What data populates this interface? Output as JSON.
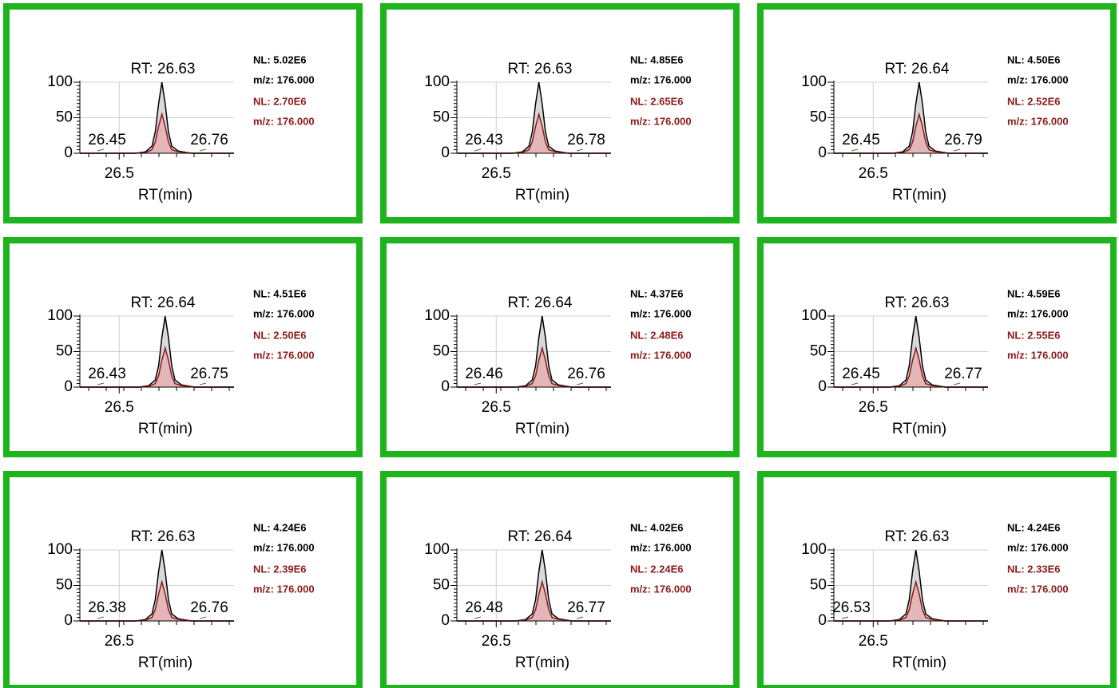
{
  "chart_data": [
    {
      "type": "line",
      "title": "RT: 26.63",
      "xlabel": "RT(min)",
      "annotations": [
        "26.45",
        "26.76"
      ],
      "xlim": [
        26.38,
        26.85
      ],
      "ylim": [
        0,
        100
      ],
      "xticks": [
        26.5
      ],
      "yticks": [
        0,
        50,
        100
      ],
      "grid": true,
      "x": [
        26.38,
        26.55,
        26.58,
        26.6,
        26.61,
        26.62,
        26.63,
        26.64,
        26.65,
        26.66,
        26.68,
        26.72,
        26.85
      ],
      "series": [
        {
          "name": "NL: 5.02E6",
          "detail": "m/z: 176.000",
          "color": "#000000",
          "fill": "#d9d9d9",
          "values": [
            0,
            0,
            2,
            10,
            30,
            70,
            100,
            70,
            30,
            10,
            3,
            0,
            0
          ]
        },
        {
          "name": "NL: 2.70E6",
          "detail": "m/z: 176.000",
          "color": "#8b1a1a",
          "fill": "#e3b3b3",
          "values": [
            0,
            0,
            1,
            5,
            16,
            38,
            55,
            38,
            16,
            5,
            2,
            0,
            0
          ]
        }
      ]
    },
    {
      "type": "line",
      "title": "RT: 26.63",
      "xlabel": "RT(min)",
      "annotations": [
        "26.43",
        "26.78"
      ],
      "xlim": [
        26.38,
        26.85
      ],
      "ylim": [
        0,
        100
      ],
      "xticks": [
        26.5
      ],
      "yticks": [
        0,
        50,
        100
      ],
      "grid": true,
      "x": [
        26.38,
        26.55,
        26.58,
        26.6,
        26.61,
        26.62,
        26.63,
        26.64,
        26.65,
        26.66,
        26.68,
        26.72,
        26.85
      ],
      "series": [
        {
          "name": "NL: 4.85E6",
          "detail": "m/z: 176.000",
          "color": "#000000",
          "fill": "#d9d9d9",
          "values": [
            0,
            0,
            2,
            10,
            30,
            70,
            100,
            70,
            30,
            10,
            3,
            0,
            0
          ]
        },
        {
          "name": "NL: 2.65E6",
          "detail": "m/z: 176.000",
          "color": "#8b1a1a",
          "fill": "#e3b3b3",
          "values": [
            0,
            0,
            1,
            5,
            16,
            38,
            55,
            38,
            16,
            5,
            2,
            0,
            0
          ]
        }
      ]
    },
    {
      "type": "line",
      "title": "RT: 26.64",
      "xlabel": "RT(min)",
      "annotations": [
        "26.45",
        "26.79"
      ],
      "xlim": [
        26.38,
        26.85
      ],
      "ylim": [
        0,
        100
      ],
      "xticks": [
        26.5
      ],
      "yticks": [
        0,
        50,
        100
      ],
      "grid": true,
      "x": [
        26.38,
        26.56,
        26.59,
        26.61,
        26.62,
        26.63,
        26.64,
        26.65,
        26.66,
        26.67,
        26.69,
        26.73,
        26.85
      ],
      "series": [
        {
          "name": "NL: 4.50E6",
          "detail": "m/z: 176.000",
          "color": "#000000",
          "fill": "#d9d9d9",
          "values": [
            0,
            0,
            2,
            10,
            30,
            70,
            100,
            70,
            30,
            10,
            3,
            0,
            0
          ]
        },
        {
          "name": "NL: 2.52E6",
          "detail": "m/z: 176.000",
          "color": "#8b1a1a",
          "fill": "#e3b3b3",
          "values": [
            0,
            0,
            1,
            5,
            16,
            38,
            55,
            38,
            16,
            5,
            2,
            0,
            0
          ]
        }
      ]
    },
    {
      "type": "line",
      "title": "RT: 26.64",
      "xlabel": "RT(min)",
      "annotations": [
        "26.43",
        "26.75"
      ],
      "xlim": [
        26.38,
        26.85
      ],
      "ylim": [
        0,
        100
      ],
      "xticks": [
        26.5
      ],
      "yticks": [
        0,
        50,
        100
      ],
      "grid": true,
      "x": [
        26.38,
        26.56,
        26.59,
        26.61,
        26.62,
        26.63,
        26.64,
        26.65,
        26.66,
        26.67,
        26.69,
        26.73,
        26.85
      ],
      "series": [
        {
          "name": "NL: 4.51E6",
          "detail": "m/z: 176.000",
          "color": "#000000",
          "fill": "#d9d9d9",
          "values": [
            0,
            0,
            2,
            10,
            30,
            70,
            100,
            70,
            30,
            10,
            3,
            0,
            0
          ]
        },
        {
          "name": "NL: 2.50E6",
          "detail": "m/z: 176.000",
          "color": "#8b1a1a",
          "fill": "#e3b3b3",
          "values": [
            0,
            0,
            1,
            5,
            16,
            38,
            55,
            38,
            16,
            5,
            2,
            0,
            0
          ]
        }
      ]
    },
    {
      "type": "line",
      "title": "RT: 26.64",
      "xlabel": "RT(min)",
      "annotations": [
        "26.46",
        "26.76"
      ],
      "xlim": [
        26.38,
        26.85
      ],
      "ylim": [
        0,
        100
      ],
      "xticks": [
        26.5
      ],
      "yticks": [
        0,
        50,
        100
      ],
      "grid": true,
      "x": [
        26.38,
        26.56,
        26.59,
        26.61,
        26.62,
        26.63,
        26.64,
        26.65,
        26.66,
        26.67,
        26.69,
        26.73,
        26.85
      ],
      "series": [
        {
          "name": "NL: 4.37E6",
          "detail": "m/z: 176.000",
          "color": "#000000",
          "fill": "#d9d9d9",
          "values": [
            0,
            0,
            2,
            10,
            30,
            70,
            100,
            70,
            30,
            10,
            3,
            0,
            0
          ]
        },
        {
          "name": "NL: 2.48E6",
          "detail": "m/z: 176.000",
          "color": "#8b1a1a",
          "fill": "#e3b3b3",
          "values": [
            0,
            0,
            1,
            5,
            16,
            38,
            55,
            38,
            16,
            5,
            2,
            0,
            0
          ]
        }
      ]
    },
    {
      "type": "line",
      "title": "RT: 26.63",
      "xlabel": "RT(min)",
      "annotations": [
        "26.45",
        "26.77"
      ],
      "xlim": [
        26.38,
        26.85
      ],
      "ylim": [
        0,
        100
      ],
      "xticks": [
        26.5
      ],
      "yticks": [
        0,
        50,
        100
      ],
      "grid": true,
      "x": [
        26.38,
        26.55,
        26.58,
        26.6,
        26.61,
        26.62,
        26.63,
        26.64,
        26.65,
        26.66,
        26.68,
        26.72,
        26.85
      ],
      "series": [
        {
          "name": "NL: 4.59E6",
          "detail": "m/z: 176.000",
          "color": "#000000",
          "fill": "#d9d9d9",
          "values": [
            0,
            0,
            2,
            10,
            30,
            70,
            100,
            70,
            30,
            10,
            3,
            0,
            0
          ]
        },
        {
          "name": "NL: 2.55E6",
          "detail": "m/z: 176.000",
          "color": "#8b1a1a",
          "fill": "#e3b3b3",
          "values": [
            0,
            0,
            1,
            5,
            16,
            38,
            55,
            38,
            16,
            5,
            2,
            0,
            0
          ]
        }
      ]
    },
    {
      "type": "line",
      "title": "RT: 26.63",
      "xlabel": "RT(min)",
      "annotations": [
        "26.38",
        "26.76"
      ],
      "xlim": [
        26.38,
        26.85
      ],
      "ylim": [
        0,
        100
      ],
      "xticks": [
        26.5
      ],
      "yticks": [
        0,
        50,
        100
      ],
      "grid": true,
      "x": [
        26.38,
        26.55,
        26.58,
        26.6,
        26.61,
        26.62,
        26.63,
        26.64,
        26.65,
        26.66,
        26.68,
        26.72,
        26.85
      ],
      "series": [
        {
          "name": "NL: 4.24E6",
          "detail": "m/z: 176.000",
          "color": "#000000",
          "fill": "#d9d9d9",
          "values": [
            0,
            0,
            2,
            10,
            30,
            70,
            100,
            70,
            30,
            10,
            3,
            0,
            0
          ]
        },
        {
          "name": "NL: 2.39E6",
          "detail": "m/z: 176.000",
          "color": "#8b1a1a",
          "fill": "#e3b3b3",
          "values": [
            0,
            0,
            1,
            5,
            16,
            38,
            55,
            38,
            16,
            5,
            2,
            0,
            0
          ]
        }
      ]
    },
    {
      "type": "line",
      "title": "RT: 26.64",
      "xlabel": "RT(min)",
      "annotations": [
        "26.48",
        "26.77"
      ],
      "xlim": [
        26.38,
        26.85
      ],
      "ylim": [
        0,
        100
      ],
      "xticks": [
        26.5
      ],
      "yticks": [
        0,
        50,
        100
      ],
      "grid": true,
      "x": [
        26.38,
        26.56,
        26.59,
        26.61,
        26.62,
        26.63,
        26.64,
        26.65,
        26.66,
        26.67,
        26.69,
        26.73,
        26.85
      ],
      "series": [
        {
          "name": "NL: 4.02E6",
          "detail": "m/z: 176.000",
          "color": "#000000",
          "fill": "#d9d9d9",
          "values": [
            0,
            0,
            2,
            10,
            30,
            70,
            100,
            70,
            30,
            10,
            3,
            0,
            0
          ]
        },
        {
          "name": "NL: 2.24E6",
          "detail": "m/z: 176.000",
          "color": "#8b1a1a",
          "fill": "#e3b3b3",
          "values": [
            0,
            0,
            1,
            5,
            16,
            38,
            55,
            38,
            16,
            5,
            2,
            0,
            0
          ]
        }
      ]
    },
    {
      "type": "line",
      "title": "RT: 26.63",
      "xlabel": "RT(min)",
      "annotations": [
        "26.53"
      ],
      "xlim": [
        26.38,
        26.85
      ],
      "ylim": [
        0,
        100
      ],
      "xticks": [
        26.5
      ],
      "yticks": [
        0,
        50,
        100
      ],
      "grid": true,
      "x": [
        26.38,
        26.55,
        26.58,
        26.6,
        26.61,
        26.62,
        26.63,
        26.64,
        26.65,
        26.66,
        26.68,
        26.72,
        26.85
      ],
      "series": [
        {
          "name": "NL: 4.24E6",
          "detail": "m/z: 176.000",
          "color": "#000000",
          "fill": "#d9d9d9",
          "values": [
            0,
            0,
            2,
            10,
            30,
            70,
            100,
            70,
            30,
            10,
            3,
            0,
            0
          ]
        },
        {
          "name": "NL: 2.33E6",
          "detail": "m/z: 176.000",
          "color": "#8b1a1a",
          "fill": "#e3b3b3",
          "values": [
            0,
            0,
            1,
            5,
            16,
            38,
            55,
            38,
            16,
            5,
            2,
            0,
            0
          ]
        }
      ]
    }
  ]
}
